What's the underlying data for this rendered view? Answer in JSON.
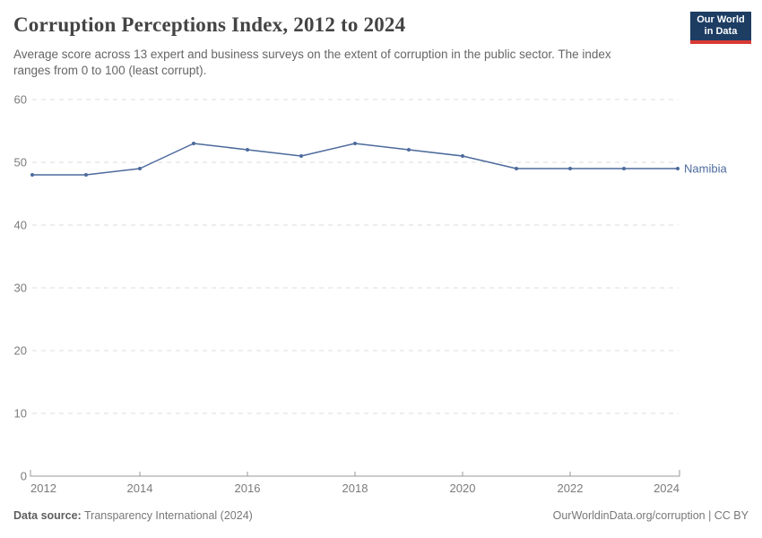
{
  "header": {
    "title": "Corruption Perceptions Index, 2012 to 2024",
    "subtitle": "Average score across 13 expert and business surveys on the extent of corruption in the public sector. The index ranges from 0 to 100 (least corrupt)."
  },
  "logo": {
    "line1": "Our World",
    "line2": "in Data",
    "bg_color": "#1d3d63",
    "accent_color": "#d93a34"
  },
  "chart_data": {
    "type": "line",
    "title": "Corruption Perceptions Index, 2012 to 2024",
    "x": [
      2012,
      2013,
      2014,
      2015,
      2016,
      2017,
      2018,
      2019,
      2020,
      2021,
      2022,
      2023,
      2024
    ],
    "series": [
      {
        "name": "Namibia",
        "values": [
          48,
          48,
          49,
          53,
          52,
          51,
          53,
          52,
          51,
          49,
          49,
          49,
          49
        ],
        "color": "#4c6a9c"
      }
    ],
    "xlabel": "",
    "ylabel": "",
    "xlim": [
      2012,
      2024
    ],
    "ylim": [
      0,
      60
    ],
    "xticks": [
      2012,
      2014,
      2016,
      2018,
      2020,
      2022,
      2024
    ],
    "yticks": [
      0,
      10,
      20,
      30,
      40,
      50,
      60
    ],
    "grid": "horizontal-dashed",
    "legend": "end-of-line-label"
  },
  "colors": {
    "line": "#4c6a9c",
    "grid": "#dcdcdc",
    "axis": "#999999",
    "tick_label": "#7b7b7b"
  },
  "footer": {
    "source_label": "Data source:",
    "source_value": " Transparency International (2024)",
    "credit": "OurWorldinData.org/corruption | CC BY"
  }
}
